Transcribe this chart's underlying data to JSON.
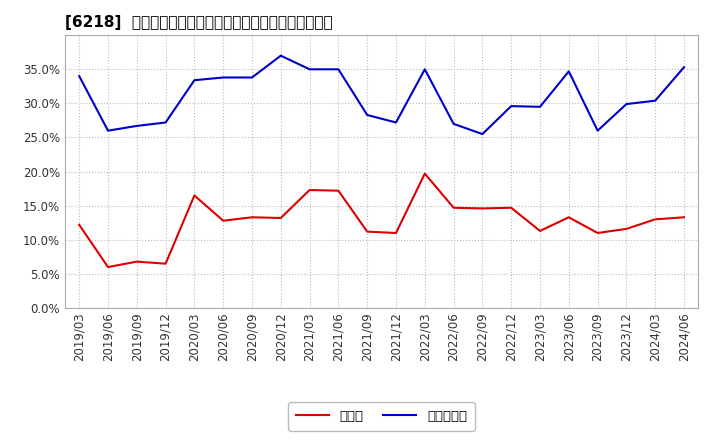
{
  "title": "[6218]  現預金、有利子負債の総資産に対する比率の推移",
  "dates": [
    "2019/03",
    "2019/06",
    "2019/09",
    "2019/12",
    "2020/03",
    "2020/06",
    "2020/09",
    "2020/12",
    "2021/03",
    "2021/06",
    "2021/09",
    "2021/12",
    "2022/03",
    "2022/06",
    "2022/09",
    "2022/12",
    "2023/03",
    "2023/06",
    "2023/09",
    "2023/12",
    "2024/03",
    "2024/06"
  ],
  "genkin": [
    0.122,
    0.06,
    0.068,
    0.065,
    0.165,
    0.128,
    0.133,
    0.132,
    0.173,
    0.172,
    0.112,
    0.11,
    0.197,
    0.147,
    0.146,
    0.147,
    0.113,
    0.133,
    0.11,
    0.116,
    0.13,
    0.133
  ],
  "yuri": [
    0.34,
    0.26,
    0.267,
    0.272,
    0.334,
    0.338,
    0.338,
    0.37,
    0.35,
    0.35,
    0.283,
    0.272,
    0.35,
    0.27,
    0.255,
    0.296,
    0.295,
    0.347,
    0.26,
    0.299,
    0.304,
    0.353
  ],
  "genkin_color": "#dd0000",
  "yuri_color": "#0000cc",
  "bg_color": "#ffffff",
  "plot_bg_color": "#ffffff",
  "grid_color": "#bbbbbb",
  "ylim": [
    0.0,
    0.4
  ],
  "yticks": [
    0.0,
    0.05,
    0.1,
    0.15,
    0.2,
    0.25,
    0.3,
    0.35
  ],
  "legend_genkin": "現預金",
  "legend_yuri": "有利子負債",
  "title_fontsize": 11
}
